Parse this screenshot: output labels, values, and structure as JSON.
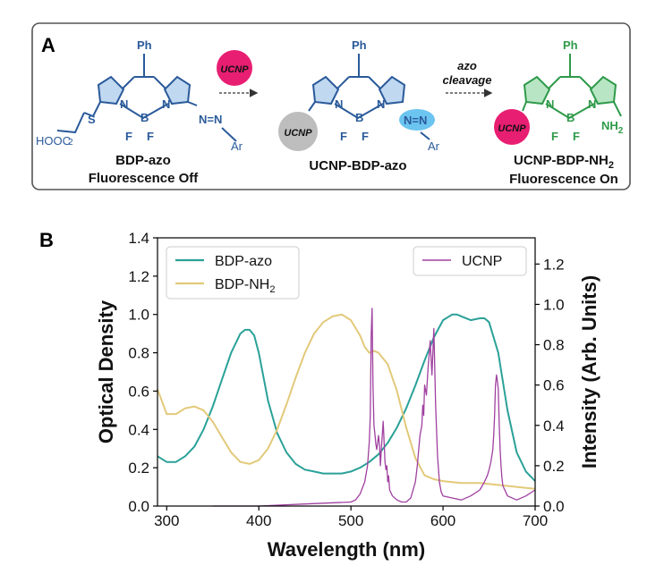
{
  "panel_a": {
    "label": "A",
    "arrow1_badge": "UCNP",
    "arrow2_top": "azo",
    "arrow2_bottom": "cleavage",
    "molecules": [
      {
        "ph": "Ph",
        "n_left": "N",
        "n_right": "N",
        "b": "B",
        "f_left": "F",
        "f_right": "F",
        "s": "S",
        "sub_2": "2",
        "hooc": "HOOC",
        "azo": "N=N",
        "ar": "Ar",
        "name": "BDP-azo",
        "state": "Fluorescence Off"
      },
      {
        "ph": "Ph",
        "n_left": "N",
        "n_right": "N",
        "b": "B",
        "f_left": "F",
        "f_right": "F",
        "badge": "UCNP",
        "azo": "N=N",
        "ar": "Ar",
        "name": "UCNP-BDP-azo"
      },
      {
        "ph": "Ph",
        "n_left": "N",
        "n_right": "N",
        "b": "B",
        "f_left": "F",
        "f_right": "F",
        "badge": "UCNP",
        "nh": "NH",
        "nh_sub": "2",
        "name": "UCNP-BDP-NH",
        "name_sub": "2",
        "state": "Fluorescence On"
      }
    ]
  },
  "panel_b": {
    "label": "B"
  },
  "chart_data": {
    "type": "line",
    "xlabel": "Wavelength (nm)",
    "ylabel_left": "Optical Density",
    "ylabel_right": "Intensity (Arb. Units)",
    "xlim": [
      290,
      700
    ],
    "ylim_left": [
      0,
      1.4
    ],
    "ylim_right": [
      0,
      1.33
    ],
    "xticks": [
      300,
      400,
      500,
      600,
      700
    ],
    "yticks_left": [
      0.0,
      0.2,
      0.4,
      0.6,
      0.8,
      1.0,
      1.2,
      1.4
    ],
    "yticks_right": [
      0.0,
      0.2,
      0.4,
      0.6,
      0.8,
      1.0,
      1.2
    ],
    "legend_left": [
      {
        "name": "BDP-azo",
        "color": "#2aa198"
      },
      {
        "name": "BDP-NH",
        "sub": "2",
        "color": "#e2c97a"
      }
    ],
    "legend_right": [
      {
        "name": "UCNP",
        "color": "#a040a0"
      }
    ],
    "series": [
      {
        "name": "BDP-azo",
        "axis": "left",
        "color": "#2aa198",
        "x": [
          290,
          300,
          310,
          320,
          330,
          340,
          350,
          360,
          370,
          380,
          385,
          390,
          395,
          400,
          410,
          420,
          430,
          440,
          450,
          460,
          470,
          480,
          490,
          500,
          510,
          520,
          530,
          540,
          550,
          560,
          570,
          580,
          590,
          600,
          610,
          615,
          620,
          630,
          640,
          645,
          650,
          660,
          670,
          680,
          690,
          700
        ],
        "values": [
          0.26,
          0.23,
          0.23,
          0.26,
          0.31,
          0.4,
          0.52,
          0.66,
          0.8,
          0.9,
          0.92,
          0.92,
          0.89,
          0.8,
          0.55,
          0.38,
          0.28,
          0.22,
          0.19,
          0.18,
          0.17,
          0.17,
          0.17,
          0.18,
          0.2,
          0.23,
          0.27,
          0.33,
          0.41,
          0.51,
          0.63,
          0.76,
          0.88,
          0.97,
          1.0,
          1.0,
          0.99,
          0.97,
          0.98,
          0.98,
          0.96,
          0.8,
          0.5,
          0.28,
          0.18,
          0.13
        ]
      },
      {
        "name": "BDP-NH2",
        "axis": "left",
        "color": "#e2c97a",
        "x": [
          290,
          300,
          310,
          320,
          330,
          340,
          350,
          360,
          370,
          380,
          390,
          400,
          410,
          420,
          430,
          440,
          450,
          460,
          470,
          480,
          490,
          500,
          510,
          515,
          520,
          525,
          530,
          540,
          550,
          560,
          570,
          580,
          590,
          600,
          620,
          640,
          660,
          680,
          700
        ],
        "values": [
          0.61,
          0.48,
          0.48,
          0.51,
          0.52,
          0.5,
          0.44,
          0.36,
          0.28,
          0.23,
          0.22,
          0.24,
          0.3,
          0.4,
          0.53,
          0.67,
          0.8,
          0.9,
          0.96,
          0.99,
          1.0,
          0.97,
          0.89,
          0.83,
          0.8,
          0.81,
          0.8,
          0.74,
          0.6,
          0.41,
          0.25,
          0.16,
          0.14,
          0.13,
          0.12,
          0.12,
          0.11,
          0.1,
          0.09
        ]
      },
      {
        "name": "UCNP",
        "axis": "right",
        "color": "#a040a0",
        "x": [
          350,
          400,
          450,
          500,
          505,
          510,
          515,
          518,
          520,
          521,
          522,
          523,
          524,
          525,
          526,
          527,
          528,
          530,
          531,
          532,
          533,
          535,
          537,
          538,
          539,
          540,
          541,
          542,
          545,
          550,
          555,
          560,
          565,
          570,
          572,
          575,
          577,
          578,
          579,
          580,
          582,
          584,
          585,
          586,
          588,
          590,
          592,
          594,
          596,
          598,
          600,
          610,
          620,
          630,
          640,
          645,
          648,
          650,
          652,
          654,
          655,
          656,
          657,
          658,
          659,
          660,
          661,
          662,
          663,
          664,
          665,
          670,
          680,
          690,
          700
        ],
        "values": [
          0.0,
          0.0,
          0.01,
          0.02,
          0.03,
          0.06,
          0.12,
          0.2,
          0.32,
          0.45,
          0.85,
          0.98,
          0.6,
          0.4,
          0.36,
          0.31,
          0.28,
          0.35,
          0.3,
          0.2,
          0.28,
          0.42,
          0.22,
          0.18,
          0.2,
          0.12,
          0.15,
          0.08,
          0.05,
          0.03,
          0.02,
          0.02,
          0.04,
          0.12,
          0.2,
          0.35,
          0.4,
          0.5,
          0.45,
          0.6,
          0.55,
          0.7,
          0.75,
          0.82,
          0.65,
          0.88,
          0.5,
          0.25,
          0.12,
          0.07,
          0.05,
          0.04,
          0.03,
          0.05,
          0.08,
          0.12,
          0.15,
          0.18,
          0.22,
          0.28,
          0.35,
          0.45,
          0.6,
          0.65,
          0.62,
          0.58,
          0.4,
          0.28,
          0.2,
          0.14,
          0.1,
          0.05,
          0.03,
          0.05,
          0.08
        ]
      }
    ]
  }
}
